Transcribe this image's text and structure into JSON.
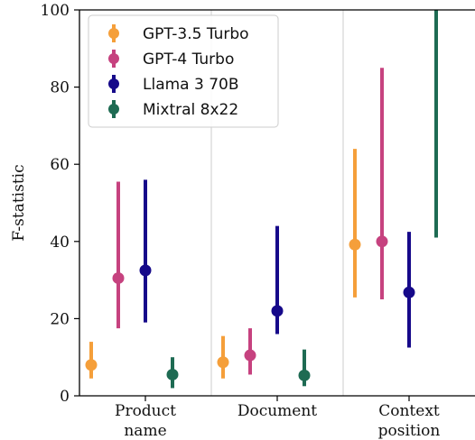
{
  "chart_data": {
    "type": "scatter",
    "subtype": "point-with-error-bars",
    "ylabel": "F-statistic",
    "ylim": [
      0,
      100
    ],
    "yticks": [
      0,
      20,
      40,
      60,
      80,
      100
    ],
    "categories": [
      {
        "lines": [
          "Product",
          "name"
        ]
      },
      {
        "lines": [
          "Document"
        ]
      },
      {
        "lines": [
          "Context",
          "position"
        ]
      }
    ],
    "grid": "vertical separators between categories",
    "legend_position": "top-left",
    "series": [
      {
        "name": "GPT-3.5 Turbo",
        "color": "#f59f3a",
        "points": [
          {
            "value": 8.0,
            "low": 4.5,
            "high": 14.0
          },
          {
            "value": 8.7,
            "low": 4.5,
            "high": 15.5
          },
          {
            "value": 39.2,
            "low": 25.5,
            "high": 64.0
          }
        ]
      },
      {
        "name": "GPT-4 Turbo",
        "color": "#c6427f",
        "points": [
          {
            "value": 30.5,
            "low": 17.5,
            "high": 55.5
          },
          {
            "value": 10.5,
            "low": 5.5,
            "high": 17.5
          },
          {
            "value": 40.0,
            "low": 25.0,
            "high": 85.0
          }
        ]
      },
      {
        "name": "Llama 3 70B",
        "color": "#16098a",
        "points": [
          {
            "value": 32.5,
            "low": 19.0,
            "high": 56.0
          },
          {
            "value": 22.0,
            "low": 16.0,
            "high": 44.0
          },
          {
            "value": 26.8,
            "low": 12.5,
            "high": 42.5
          }
        ]
      },
      {
        "name": "Mixtral 8x22",
        "color": "#1e6b53",
        "points": [
          {
            "value": 5.5,
            "low": 2.0,
            "high": 10.0
          },
          {
            "value": 5.3,
            "low": 2.5,
            "high": 12.0
          },
          {
            "value": null,
            "low": 41.0,
            "high": 100.0
          }
        ]
      }
    ]
  }
}
